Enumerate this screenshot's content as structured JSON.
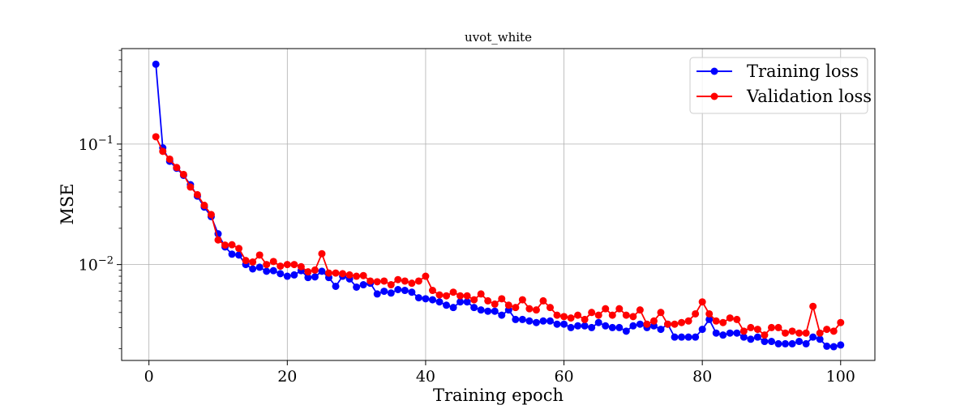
{
  "chart_data": {
    "type": "line",
    "title": "uvot_white",
    "xlabel": "Training epoch",
    "ylabel": "MSE",
    "xlim": [
      -3.95,
      104.95
    ],
    "ylim": [
      0.0016,
      0.62
    ],
    "yscale": "log",
    "grid": true,
    "legend_position": "top-right",
    "x_ticks": [
      0,
      20,
      40,
      60,
      80,
      100
    ],
    "x_tick_labels": [
      "0",
      "20",
      "40",
      "60",
      "80",
      "100"
    ],
    "y_major_ticks": [
      {
        "value": 0.1,
        "base": "10",
        "exp": "−1"
      },
      {
        "value": 0.01,
        "base": "10",
        "exp": "−2"
      }
    ],
    "x": [
      1,
      2,
      3,
      4,
      5,
      6,
      7,
      8,
      9,
      10,
      11,
      12,
      13,
      14,
      15,
      16,
      17,
      18,
      19,
      20,
      21,
      22,
      23,
      24,
      25,
      26,
      27,
      28,
      29,
      30,
      31,
      32,
      33,
      34,
      35,
      36,
      37,
      38,
      39,
      40,
      41,
      42,
      43,
      44,
      45,
      46,
      47,
      48,
      49,
      50,
      51,
      52,
      53,
      54,
      55,
      56,
      57,
      58,
      59,
      60,
      61,
      62,
      63,
      64,
      65,
      66,
      67,
      68,
      69,
      70,
      71,
      72,
      73,
      74,
      75,
      76,
      77,
      78,
      79,
      80,
      81,
      82,
      83,
      84,
      85,
      86,
      87,
      88,
      89,
      90,
      91,
      92,
      93,
      94,
      95,
      96,
      97,
      98,
      99,
      100
    ],
    "series": [
      {
        "name": "Training loss",
        "color": "#0000ff",
        "values": [
          0.46,
          0.093,
          0.072,
          0.063,
          0.055,
          0.046,
          0.037,
          0.03,
          0.025,
          0.018,
          0.014,
          0.0122,
          0.012,
          0.01,
          0.0092,
          0.0095,
          0.0088,
          0.0089,
          0.0084,
          0.008,
          0.0082,
          0.0089,
          0.0078,
          0.0079,
          0.0088,
          0.0078,
          0.0066,
          0.008,
          0.0076,
          0.0065,
          0.0068,
          0.007,
          0.0057,
          0.006,
          0.0058,
          0.0062,
          0.0061,
          0.0059,
          0.0053,
          0.0052,
          0.0051,
          0.0049,
          0.0046,
          0.0044,
          0.0049,
          0.0049,
          0.0044,
          0.0042,
          0.0041,
          0.0041,
          0.0038,
          0.0042,
          0.0035,
          0.0035,
          0.0034,
          0.0033,
          0.0034,
          0.0034,
          0.0032,
          0.0032,
          0.003,
          0.0031,
          0.0031,
          0.003,
          0.0033,
          0.0031,
          0.003,
          0.003,
          0.0028,
          0.0031,
          0.0032,
          0.003,
          0.0031,
          0.0029,
          0.0032,
          0.0025,
          0.0025,
          0.0025,
          0.0025,
          0.0029,
          0.0035,
          0.0027,
          0.0026,
          0.0027,
          0.0027,
          0.0025,
          0.0024,
          0.0025,
          0.0023,
          0.0023,
          0.0022,
          0.0022,
          0.0022,
          0.0023,
          0.0022,
          0.0025,
          0.0024,
          0.0021,
          0.00208,
          0.00215
        ]
      },
      {
        "name": "Validation loss",
        "color": "#ff0000",
        "values": [
          0.115,
          0.087,
          0.075,
          0.064,
          0.056,
          0.044,
          0.038,
          0.031,
          0.026,
          0.016,
          0.0145,
          0.0146,
          0.0136,
          0.0108,
          0.0105,
          0.012,
          0.01,
          0.0106,
          0.0097,
          0.01,
          0.01,
          0.0096,
          0.0087,
          0.009,
          0.0123,
          0.0085,
          0.0085,
          0.0084,
          0.0082,
          0.008,
          0.0081,
          0.0073,
          0.0072,
          0.0073,
          0.0068,
          0.0075,
          0.0073,
          0.007,
          0.0073,
          0.008,
          0.0061,
          0.0056,
          0.0055,
          0.0059,
          0.0055,
          0.0055,
          0.0051,
          0.0057,
          0.005,
          0.0047,
          0.0052,
          0.0046,
          0.0044,
          0.0051,
          0.0043,
          0.0042,
          0.005,
          0.0044,
          0.0038,
          0.0037,
          0.0036,
          0.0038,
          0.0035,
          0.004,
          0.0038,
          0.0043,
          0.0038,
          0.0043,
          0.0038,
          0.0037,
          0.0042,
          0.0032,
          0.0034,
          0.004,
          0.0032,
          0.0032,
          0.0033,
          0.0034,
          0.0039,
          0.0049,
          0.0039,
          0.0034,
          0.0033,
          0.0036,
          0.0035,
          0.0028,
          0.003,
          0.0029,
          0.0026,
          0.003,
          0.003,
          0.0027,
          0.0028,
          0.0027,
          0.0027,
          0.0045,
          0.0027,
          0.0029,
          0.0028,
          0.0033
        ]
      }
    ]
  }
}
